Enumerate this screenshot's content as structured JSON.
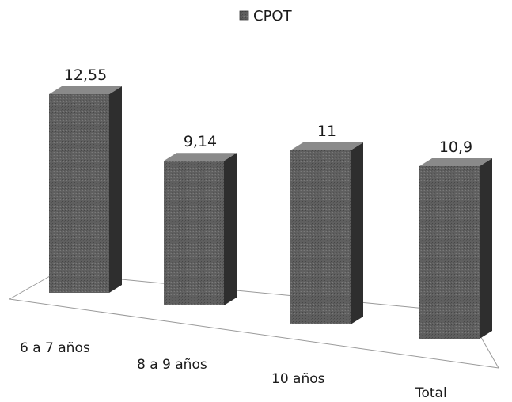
{
  "chart_data": {
    "type": "bar",
    "categories": [
      "6  a 7 años",
      "8 a 9 años",
      "10 años",
      "Total"
    ],
    "series": [
      {
        "name": "CPOT",
        "values": [
          12.55,
          9.14,
          11,
          10.9
        ],
        "labels": [
          "12,55",
          "9,14",
          "11",
          "10,9"
        ]
      }
    ],
    "ylim": [
      0,
      14
    ],
    "grid": false,
    "legend_position": "top-center",
    "colors": {
      "bar_front": "#5f5f5f",
      "bar_side": "#2e2e2e",
      "bar_top": "#8a8a8a",
      "floor_line": "#9a9a9a"
    }
  }
}
